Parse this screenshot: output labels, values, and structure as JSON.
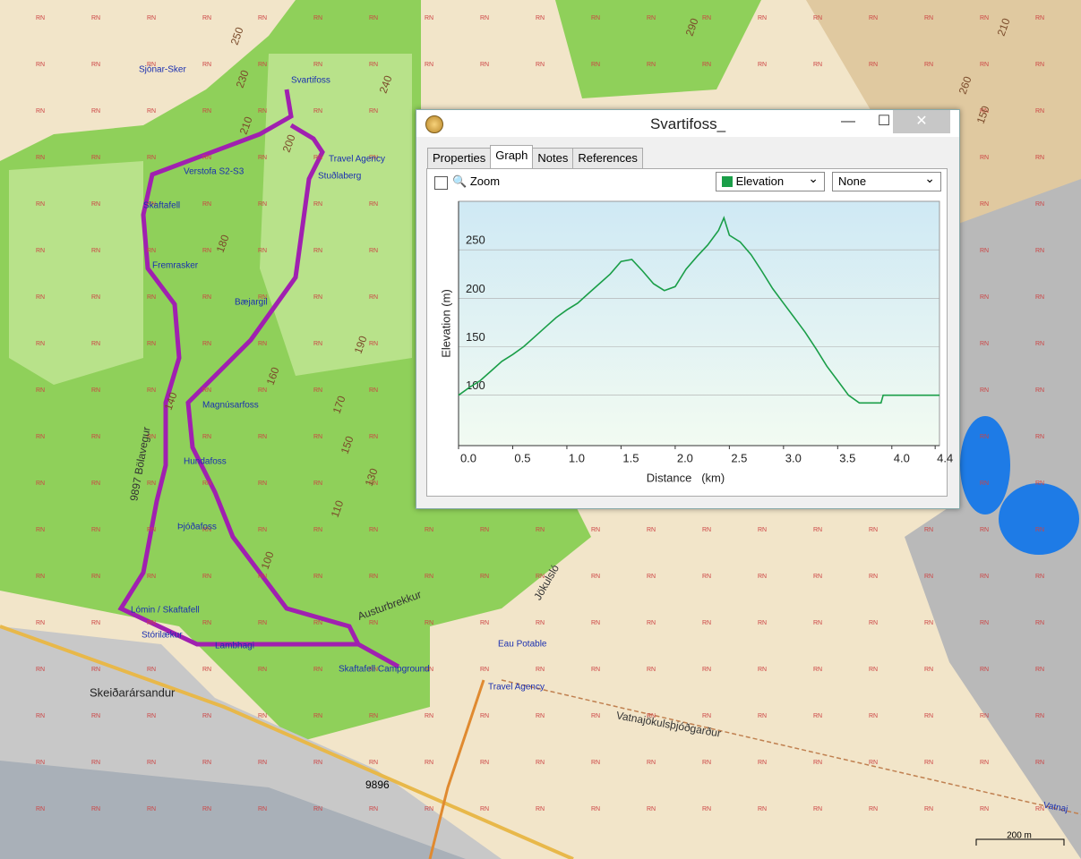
{
  "window": {
    "title": "Svartifoss_",
    "tabs": [
      "Properties",
      "Graph",
      "Notes",
      "References"
    ],
    "zoom": "Zoom",
    "series_select": "Elevation",
    "compare_select": "None"
  },
  "map": {
    "marker": "RN",
    "scale": "200 m",
    "labels": [
      "Sjónar-Sker",
      "Svartifoss",
      "Travel Agency",
      "Stuðlaberg",
      "Skaftafell",
      "Fremrasker",
      "Bæjargil",
      "Magnúsarfoss",
      "Hundafoss",
      "Þjóðafoss",
      "Lómin / Skaftafell",
      "Stórilækur",
      "Lambhagi",
      "Skaftafell Campground",
      "Eau Potable",
      "Travel Agency",
      "Skeiðarársandur",
      "Vatnajökulsþjóðgarður",
      "Austurbrekkur",
      "Jökulsló",
      "9897 Bölavegur",
      "9896",
      "Vatnaj",
      "Verstofa S2-S3"
    ],
    "contours": [
      "250",
      "230",
      "240",
      "210",
      "200",
      "180",
      "190",
      "160",
      "170",
      "150",
      "130",
      "110",
      "100",
      "140",
      "260",
      "150",
      "210",
      "290"
    ]
  },
  "chart_data": {
    "type": "line",
    "x_label": "Distance   (km)",
    "y_label": "Elevation (m)",
    "x": [
      0,
      0.1,
      0.2,
      0.3,
      0.4,
      0.5,
      0.6,
      0.7,
      0.8,
      0.9,
      1.0,
      1.1,
      1.2,
      1.3,
      1.4,
      1.5,
      1.6,
      1.7,
      1.8,
      1.9,
      2.0,
      2.1,
      2.2,
      2.3,
      2.4,
      2.45,
      2.5,
      2.6,
      2.7,
      2.8,
      2.9,
      3.0,
      3.1,
      3.2,
      3.3,
      3.4,
      3.5,
      3.6,
      3.7,
      3.8,
      3.9,
      3.92,
      4.0,
      4.44
    ],
    "values": [
      100,
      108,
      115,
      125,
      135,
      142,
      150,
      160,
      170,
      180,
      188,
      195,
      205,
      215,
      225,
      238,
      240,
      228,
      215,
      208,
      212,
      230,
      243,
      255,
      270,
      283,
      265,
      258,
      245,
      228,
      210,
      195,
      180,
      165,
      148,
      130,
      115,
      100,
      92,
      92,
      92,
      100,
      100,
      100
    ],
    "color": "#1a9e48",
    "xlim": [
      0,
      4.44
    ],
    "ylim": [
      48,
      300
    ],
    "xticks": [
      {
        "value": 0,
        "label": "0.0"
      },
      0.5,
      {
        "value": 1,
        "label": "1.0"
      },
      1.5,
      {
        "value": 2,
        "label": "2.0"
      },
      2.5,
      {
        "value": 3,
        "label": "3.0"
      },
      3.5,
      {
        "value": 4,
        "label": "4.0"
      },
      4.4
    ],
    "yticks": [
      100,
      150,
      200,
      250
    ],
    "grid": true
  }
}
